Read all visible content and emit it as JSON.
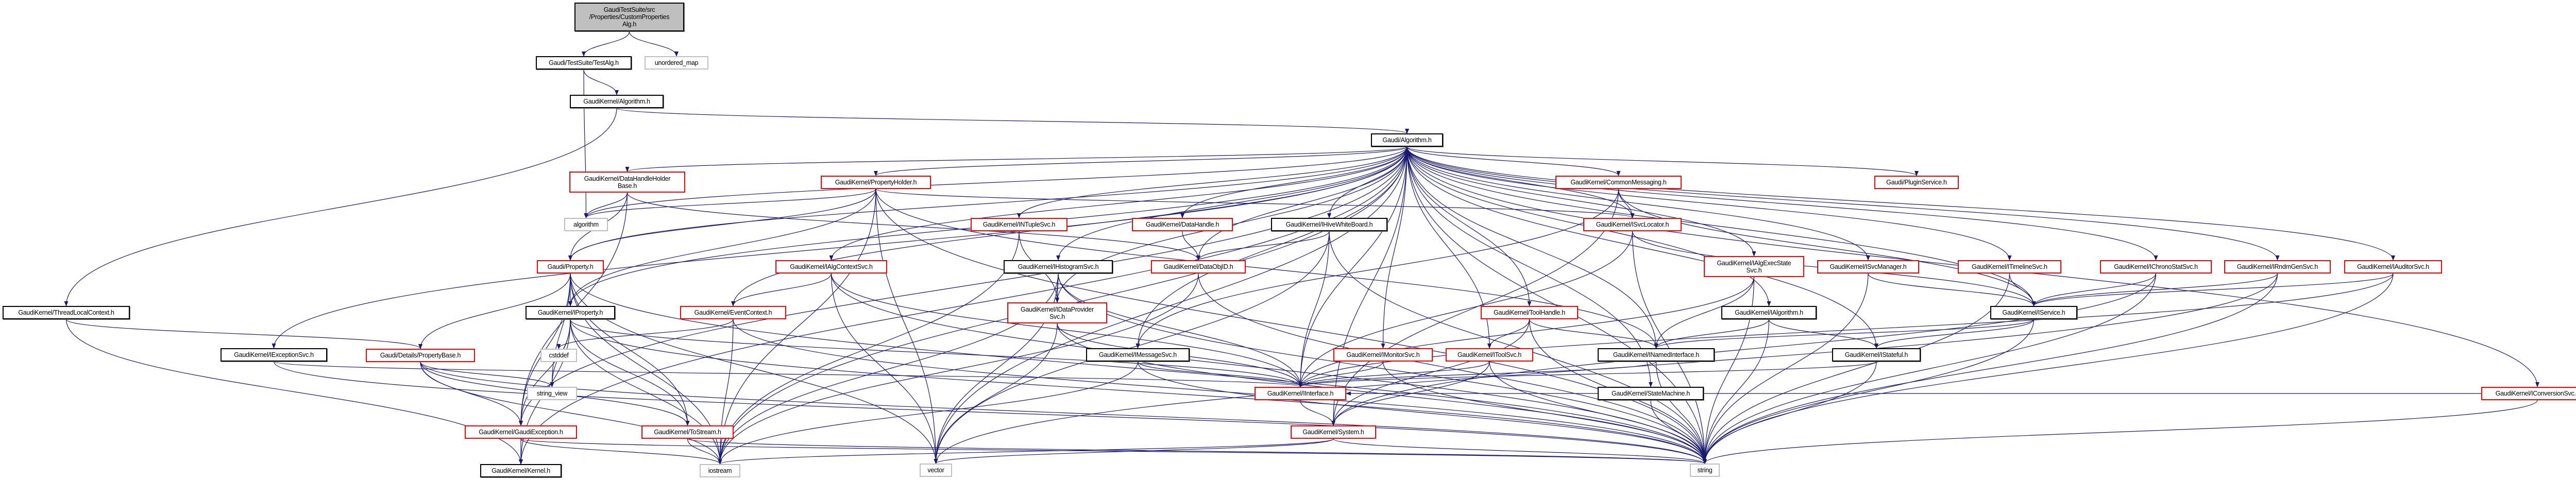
{
  "graph": {
    "colors": {
      "edge": "#191970",
      "truncated_node_border": "#ff0000",
      "node_border": "#000000",
      "system_header_border": "#bfbfbf",
      "root_fill": "#bfbfbf"
    },
    "nodes": [
      {
        "id": "n0",
        "label": "GaudiTestSuite/src\n/Properties/CustomProperties\nAlg.h",
        "style": "root"
      },
      {
        "id": "n1",
        "label": "Gaudi/TestSuite/TestAlg.h",
        "style": "black"
      },
      {
        "id": "n2",
        "label": "unordered_map",
        "style": "gray"
      },
      {
        "id": "n3",
        "label": "GaudiKernel/Algorithm.h",
        "style": "black"
      },
      {
        "id": "n4",
        "label": "Gaudi/Algorithm.h",
        "style": "black"
      },
      {
        "id": "n5",
        "label": "GaudiKernel/DataHandleHolder\nBase.h",
        "style": "red"
      },
      {
        "id": "n6",
        "label": "GaudiKernel/PropertyHolder.h",
        "style": "red"
      },
      {
        "id": "n7",
        "label": "GaudiKernel/CommonMessaging.h",
        "style": "red"
      },
      {
        "id": "n8",
        "label": "Gaudi/PluginService.h",
        "style": "red"
      },
      {
        "id": "n9",
        "label": "algorithm",
        "style": "gray"
      },
      {
        "id": "n10",
        "label": "GaudiKernel/INTupleSvc.h",
        "style": "red"
      },
      {
        "id": "n11",
        "label": "GaudiKernel/DataHandle.h",
        "style": "red"
      },
      {
        "id": "n12",
        "label": "GaudiKernel/IHiveWhiteBoard.h",
        "style": "black"
      },
      {
        "id": "n13",
        "label": "GaudiKernel/ISvcLocator.h",
        "style": "red"
      },
      {
        "id": "n14",
        "label": "GaudiKernel/ThreadLocalContext.h",
        "style": "black"
      },
      {
        "id": "n15",
        "label": "Gaudi/Property.h",
        "style": "red"
      },
      {
        "id": "n16",
        "label": "GaudiKernel/IAlgContextSvc.h",
        "style": "red"
      },
      {
        "id": "n17",
        "label": "GaudiKernel/IHistogramSvc.h",
        "style": "black"
      },
      {
        "id": "n18",
        "label": "GaudiKernel/DataObjID.h",
        "style": "red"
      },
      {
        "id": "n19",
        "label": "GaudiKernel/IAlgExecState\nSvc.h",
        "style": "red"
      },
      {
        "id": "n20",
        "label": "GaudiKernel/ISvcManager.h",
        "style": "red"
      },
      {
        "id": "n21",
        "label": "GaudiKernel/ITimelineSvc.h",
        "style": "red"
      },
      {
        "id": "n22",
        "label": "GaudiKernel/IChronoStatSvc.h",
        "style": "red"
      },
      {
        "id": "n23",
        "label": "GaudiKernel/IRndmGenSvc.h",
        "style": "red"
      },
      {
        "id": "n24",
        "label": "GaudiKernel/IAuditorSvc.h",
        "style": "red"
      },
      {
        "id": "n25",
        "label": "GaudiKernel/IDataProvider\nSvc.h",
        "style": "red"
      },
      {
        "id": "n26",
        "label": "GaudiKernel/IProperty.h",
        "style": "black"
      },
      {
        "id": "n27",
        "label": "GaudiKernel/EventContext.h",
        "style": "red"
      },
      {
        "id": "n28",
        "label": "GaudiKernel/ToolHandle.h",
        "style": "red"
      },
      {
        "id": "n29",
        "label": "GaudiKernel/IAlgorithm.h",
        "style": "black"
      },
      {
        "id": "n30",
        "label": "GaudiKernel/IService.h",
        "style": "black"
      },
      {
        "id": "n31",
        "label": "Gaudi/Details/PropertyBase.h",
        "style": "red"
      },
      {
        "id": "n32",
        "label": "GaudiKernel/IExceptionSvc.h",
        "style": "black"
      },
      {
        "id": "n33",
        "label": "cstddef",
        "style": "gray"
      },
      {
        "id": "n34",
        "label": "GaudiKernel/IMessageSvc.h",
        "style": "black"
      },
      {
        "id": "n35",
        "label": "GaudiKernel/IMonitorSvc.h",
        "style": "red"
      },
      {
        "id": "n36",
        "label": "GaudiKernel/IToolSvc.h",
        "style": "red"
      },
      {
        "id": "n37",
        "label": "GaudiKernel/INamedInterface.h",
        "style": "black"
      },
      {
        "id": "n38",
        "label": "GaudiKernel/IStateful.h",
        "style": "black"
      },
      {
        "id": "n39",
        "label": "string_view",
        "style": "gray"
      },
      {
        "id": "n40",
        "label": "GaudiKernel/IInterface.h",
        "style": "red"
      },
      {
        "id": "n41",
        "label": "GaudiKernel/StateMachine.h",
        "style": "black"
      },
      {
        "id": "n42",
        "label": "GaudiKernel/IConversionSvc.h",
        "style": "red"
      },
      {
        "id": "n43",
        "label": "GaudiKernel/GaudiException.h",
        "style": "red"
      },
      {
        "id": "n44",
        "label": "GaudiKernel/ToStream.h",
        "style": "red"
      },
      {
        "id": "n45",
        "label": "GaudiKernel/System.h",
        "style": "red"
      },
      {
        "id": "n46",
        "label": "GaudiKernel/Kernel.h",
        "style": "black"
      },
      {
        "id": "n47",
        "label": "iostream",
        "style": "gray"
      },
      {
        "id": "n48",
        "label": "vector",
        "style": "gray"
      },
      {
        "id": "n49",
        "label": "string",
        "style": "gray"
      }
    ],
    "edges": [
      [
        "n0",
        "n1"
      ],
      [
        "n0",
        "n2"
      ],
      [
        "n1",
        "n3"
      ],
      [
        "n1",
        "n9"
      ],
      [
        "n3",
        "n4"
      ],
      [
        "n3",
        "n14"
      ],
      [
        "n4",
        "n5"
      ],
      [
        "n4",
        "n6"
      ],
      [
        "n4",
        "n7"
      ],
      [
        "n4",
        "n8"
      ],
      [
        "n4",
        "n9"
      ],
      [
        "n4",
        "n10"
      ],
      [
        "n4",
        "n11"
      ],
      [
        "n4",
        "n12"
      ],
      [
        "n4",
        "n13"
      ],
      [
        "n4",
        "n15"
      ],
      [
        "n4",
        "n16"
      ],
      [
        "n4",
        "n17"
      ],
      [
        "n4",
        "n18"
      ],
      [
        "n4",
        "n19"
      ],
      [
        "n4",
        "n20"
      ],
      [
        "n4",
        "n21"
      ],
      [
        "n4",
        "n22"
      ],
      [
        "n4",
        "n23"
      ],
      [
        "n4",
        "n24"
      ],
      [
        "n4",
        "n25"
      ],
      [
        "n4",
        "n26"
      ],
      [
        "n4",
        "n27"
      ],
      [
        "n4",
        "n28"
      ],
      [
        "n4",
        "n29"
      ],
      [
        "n4",
        "n30"
      ],
      [
        "n4",
        "n32"
      ],
      [
        "n4",
        "n34"
      ],
      [
        "n4",
        "n35"
      ],
      [
        "n4",
        "n36"
      ],
      [
        "n4",
        "n37"
      ],
      [
        "n4",
        "n38"
      ],
      [
        "n4",
        "n40"
      ],
      [
        "n4",
        "n41"
      ],
      [
        "n4",
        "n42"
      ],
      [
        "n4",
        "n43"
      ],
      [
        "n4",
        "n45"
      ],
      [
        "n4",
        "n46"
      ],
      [
        "n4",
        "n47"
      ],
      [
        "n4",
        "n48"
      ],
      [
        "n4",
        "n49"
      ],
      [
        "n5",
        "n9"
      ],
      [
        "n5",
        "n15"
      ],
      [
        "n5",
        "n18"
      ],
      [
        "n5",
        "n43"
      ],
      [
        "n6",
        "n9"
      ],
      [
        "n6",
        "n15"
      ],
      [
        "n6",
        "n26"
      ],
      [
        "n6",
        "n37"
      ],
      [
        "n6",
        "n13"
      ],
      [
        "n6",
        "n48"
      ],
      [
        "n6",
        "n49"
      ],
      [
        "n6",
        "n47"
      ],
      [
        "n15",
        "n26"
      ],
      [
        "n15",
        "n31"
      ],
      [
        "n15",
        "n39"
      ],
      [
        "n15",
        "n43"
      ],
      [
        "n15",
        "n44"
      ],
      [
        "n15",
        "n47"
      ],
      [
        "n15",
        "n49"
      ],
      [
        "n15",
        "n48"
      ],
      [
        "n26",
        "n39"
      ],
      [
        "n26",
        "n43"
      ],
      [
        "n26",
        "n44"
      ],
      [
        "n26",
        "n40"
      ],
      [
        "n26",
        "n49"
      ],
      [
        "n26",
        "n47"
      ],
      [
        "n26",
        "n46"
      ],
      [
        "n27",
        "n33"
      ],
      [
        "n27",
        "n47"
      ],
      [
        "n27",
        "n49"
      ],
      [
        "n16",
        "n27"
      ],
      [
        "n16",
        "n40"
      ],
      [
        "n16",
        "n48"
      ],
      [
        "n16",
        "n49"
      ],
      [
        "n10",
        "n25"
      ],
      [
        "n10",
        "n47"
      ],
      [
        "n17",
        "n25"
      ],
      [
        "n17",
        "n40"
      ],
      [
        "n17",
        "n48"
      ],
      [
        "n17",
        "n49"
      ],
      [
        "n17",
        "n47"
      ],
      [
        "n11",
        "n18"
      ],
      [
        "n12",
        "n18"
      ],
      [
        "n12",
        "n40"
      ],
      [
        "n12",
        "n48"
      ],
      [
        "n12",
        "n49"
      ],
      [
        "n18",
        "n49"
      ],
      [
        "n18",
        "n47"
      ],
      [
        "n25",
        "n40"
      ],
      [
        "n25",
        "n48"
      ],
      [
        "n25",
        "n49"
      ],
      [
        "n34",
        "n40"
      ],
      [
        "n34",
        "n47"
      ],
      [
        "n34",
        "n49"
      ],
      [
        "n7",
        "n13"
      ],
      [
        "n7",
        "n34"
      ],
      [
        "n7",
        "n45"
      ],
      [
        "n7",
        "n30"
      ],
      [
        "n13",
        "n40"
      ],
      [
        "n13",
        "n30"
      ],
      [
        "n13",
        "n49"
      ],
      [
        "n19",
        "n40"
      ],
      [
        "n19",
        "n49"
      ],
      [
        "n19",
        "n37"
      ],
      [
        "n28",
        "n36"
      ],
      [
        "n28",
        "n37"
      ],
      [
        "n28",
        "n45"
      ],
      [
        "n28",
        "n49"
      ],
      [
        "n35",
        "n40"
      ],
      [
        "n35",
        "n49"
      ],
      [
        "n36",
        "n40"
      ],
      [
        "n36",
        "n45"
      ],
      [
        "n36",
        "n49"
      ],
      [
        "n29",
        "n37"
      ],
      [
        "n29",
        "n38"
      ],
      [
        "n29",
        "n49"
      ],
      [
        "n30",
        "n37"
      ],
      [
        "n30",
        "n38"
      ],
      [
        "n30",
        "n49"
      ],
      [
        "n37",
        "n40"
      ],
      [
        "n37",
        "n49"
      ],
      [
        "n38",
        "n40"
      ],
      [
        "n38",
        "n49"
      ],
      [
        "n41",
        "n49"
      ],
      [
        "n20",
        "n30"
      ],
      [
        "n20",
        "n49"
      ],
      [
        "n21",
        "n30"
      ],
      [
        "n21",
        "n49"
      ],
      [
        "n22",
        "n30"
      ],
      [
        "n22",
        "n45"
      ],
      [
        "n22",
        "n49"
      ],
      [
        "n23",
        "n30"
      ],
      [
        "n23",
        "n49"
      ],
      [
        "n23",
        "n48"
      ],
      [
        "n24",
        "n30"
      ],
      [
        "n24",
        "n49"
      ],
      [
        "n24",
        "n40"
      ],
      [
        "n42",
        "n49"
      ],
      [
        "n42",
        "n40"
      ],
      [
        "n40",
        "n45"
      ],
      [
        "n45",
        "n49"
      ],
      [
        "n45",
        "n48"
      ],
      [
        "n45",
        "n47"
      ],
      [
        "n43",
        "n46"
      ],
      [
        "n43",
        "n47"
      ],
      [
        "n43",
        "n49"
      ],
      [
        "n44",
        "n47"
      ],
      [
        "n44",
        "n49"
      ],
      [
        "n31",
        "n43"
      ],
      [
        "n31",
        "n44"
      ],
      [
        "n31",
        "n47"
      ],
      [
        "n31",
        "n49"
      ],
      [
        "n31",
        "n39"
      ],
      [
        "n32",
        "n40"
      ],
      [
        "n32",
        "n49"
      ],
      [
        "n14",
        "n46"
      ],
      [
        "n14",
        "n31"
      ]
    ]
  }
}
